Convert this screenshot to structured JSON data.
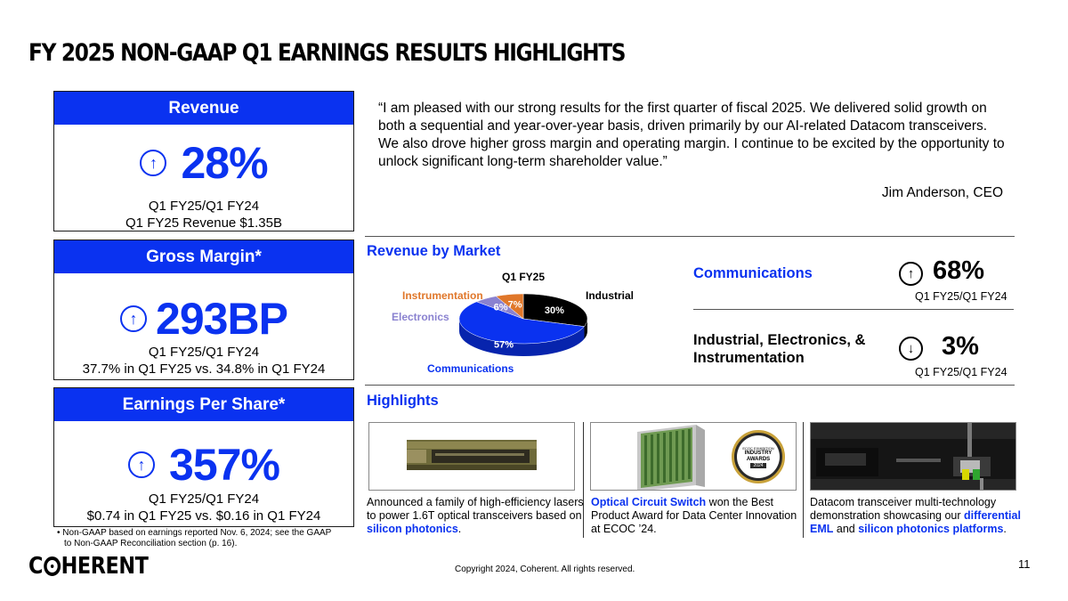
{
  "slide": {
    "title": "FY 2025 NON-GAAP Q1 EARNINGS RESULTS HIGHLIGHTS",
    "copyright": "Copyright 2024, Coherent. All rights reserved.",
    "page_number": "11",
    "logo": {
      "left": "C",
      "right": "HERENT"
    }
  },
  "cards": {
    "revenue": {
      "header": "Revenue",
      "value": "28%",
      "line1": "Q1 FY25/Q1 FY24",
      "line2": "Q1 FY25 Revenue $1.35B",
      "arrow": "↑"
    },
    "gross_margin": {
      "header": "Gross Margin*",
      "value": "293BP",
      "line1": "Q1 FY25/Q1 FY24",
      "line2": "37.7% in Q1 FY25 vs. 34.8% in Q1 FY24",
      "arrow": "↑"
    },
    "eps": {
      "header": "Earnings Per Share*",
      "value": "357%",
      "line1": "Q1 FY25/Q1 FY24",
      "line2": "$0.74 in Q1 FY25 vs. $0.16 in Q1 FY24",
      "arrow": "↑"
    }
  },
  "footnote": {
    "bullet": "•",
    "line1": "Non-GAAP based on earnings reported Nov. 6, 2024; see the GAAP",
    "line2": "to Non-GAAP Reconciliation section (p. 16)."
  },
  "quote": {
    "text": "“I am pleased with our strong results for the first quarter of fiscal 2025. We delivered solid growth on both a sequential and year-over-year basis, driven primarily by our AI-related Datacom transceivers. We also drove higher gross margin and operating margin. I continue to be excited by the opportunity to unlock significant long-term shareholder value.”",
    "author": "Jim Anderson, CEO"
  },
  "revenue_by_market": {
    "heading": "Revenue by Market",
    "communications": {
      "label": "Communications",
      "value": "68%",
      "sub": "Q1 FY25/Q1 FY24",
      "arrow": "↑"
    },
    "industrial": {
      "label": "Industrial, Electronics, & Instrumentation",
      "value": "3%",
      "sub": "Q1 FY25/Q1 FY24",
      "arrow": "↓"
    }
  },
  "chart_data": {
    "type": "pie",
    "title": "Q1 FY25",
    "categories": [
      "Communications",
      "Electronics",
      "Instrumentation",
      "Industrial"
    ],
    "values": [
      57,
      6,
      7,
      30
    ],
    "labels": [
      "57%",
      "6%",
      "7%",
      "30%"
    ],
    "colors": [
      "#0a32f0",
      "#8a82d0",
      "#e0772a",
      "#000000"
    ],
    "label_colors": [
      "#0a32f0",
      "#8a82d0",
      "#e0772a",
      "#000000"
    ]
  },
  "highlights": {
    "heading": "Highlights",
    "items": [
      {
        "pre": "Announced a family of high-efficiency lasers to power 1.6T optical transceivers based on ",
        "bold1": "silicon photonics",
        "mid": "",
        "bold2": "",
        "post": "."
      },
      {
        "pre": "",
        "bold1": "Optical Circuit Switch",
        "mid": " won the Best Product Award for Data Center Innovation at ECOC ’24.",
        "bold2": "",
        "post": ""
      },
      {
        "pre": "Datacom transceiver multi-technology demonstration showcasing our ",
        "bold1": "differential EML",
        "mid": " and ",
        "bold2": "silicon photonics platforms",
        "post": "."
      }
    ],
    "award_badge": {
      "l1": "ECOC EXHIBITION",
      "l2": "INDUSTRY",
      "l3": "AWARDS",
      "l4": "2024"
    }
  }
}
